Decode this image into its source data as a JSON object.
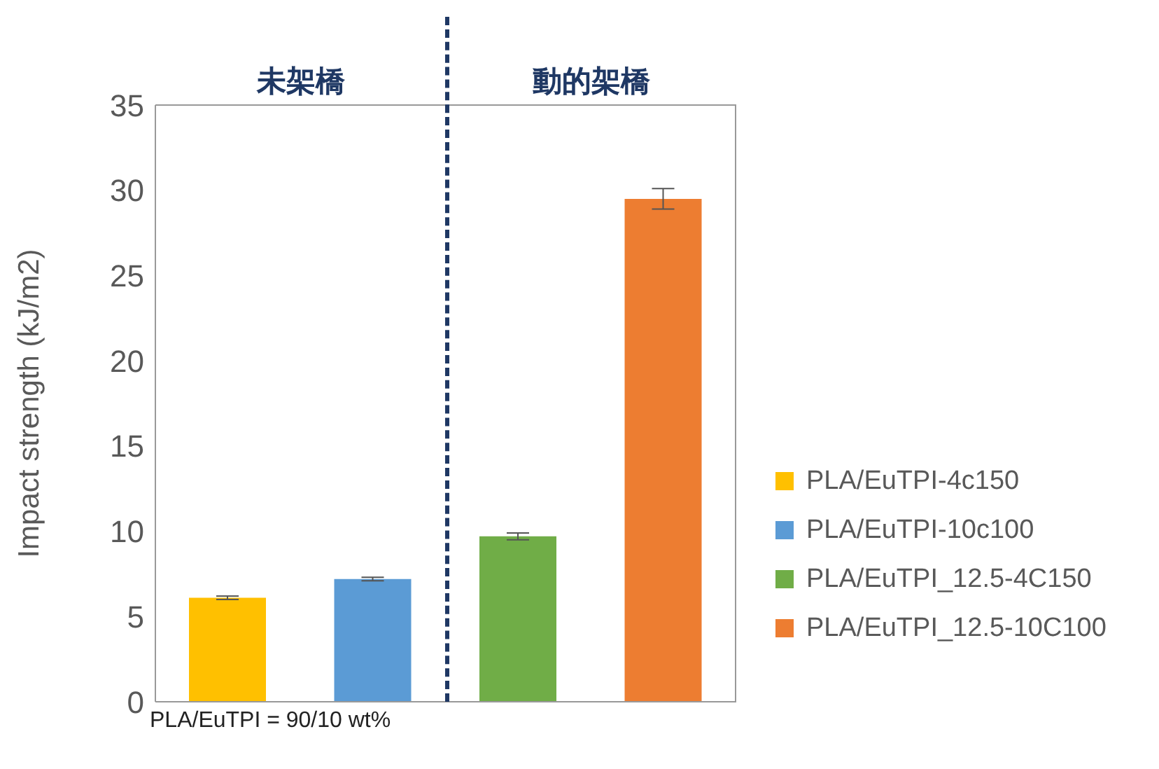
{
  "chart_data": {
    "type": "bar",
    "ylabel": "Impact strength (kJ/m2)",
    "categories": [
      null,
      null,
      null,
      null
    ],
    "stacked": true,
    "series": [
      {
        "name": "PLA/EuTPI-4c150",
        "color": "#ffc000",
        "values": [
          6.1,
          null,
          null,
          null
        ],
        "errors": [
          0.1,
          null,
          null,
          null
        ]
      },
      {
        "name": "PLA/EuTPI-10c100",
        "color": "#5b9bd5",
        "values": [
          null,
          7.2,
          null,
          null
        ],
        "errors": [
          null,
          0.1,
          null,
          null
        ]
      },
      {
        "name": "PLA/EuTPI_12.5-4C150",
        "color": "#70ad47",
        "values": [
          null,
          null,
          9.7,
          null
        ],
        "errors": [
          null,
          null,
          0.2,
          null
        ]
      },
      {
        "name": "PLA/EuTPI_12.5-10C100",
        "color": "#ed7d31",
        "values": [
          null,
          null,
          null,
          29.5
        ],
        "errors": [
          null,
          null,
          null,
          0.6
        ]
      }
    ],
    "ylim": [
      0,
      35
    ],
    "yticks": [
      0,
      5,
      10,
      15,
      20,
      25,
      30,
      35
    ],
    "legend": "right",
    "tick_labels": "y",
    "annotations": [
      "未架橋",
      "動的架橋",
      "PLA/EuTPI = 90/10 wt%"
    ]
  }
}
